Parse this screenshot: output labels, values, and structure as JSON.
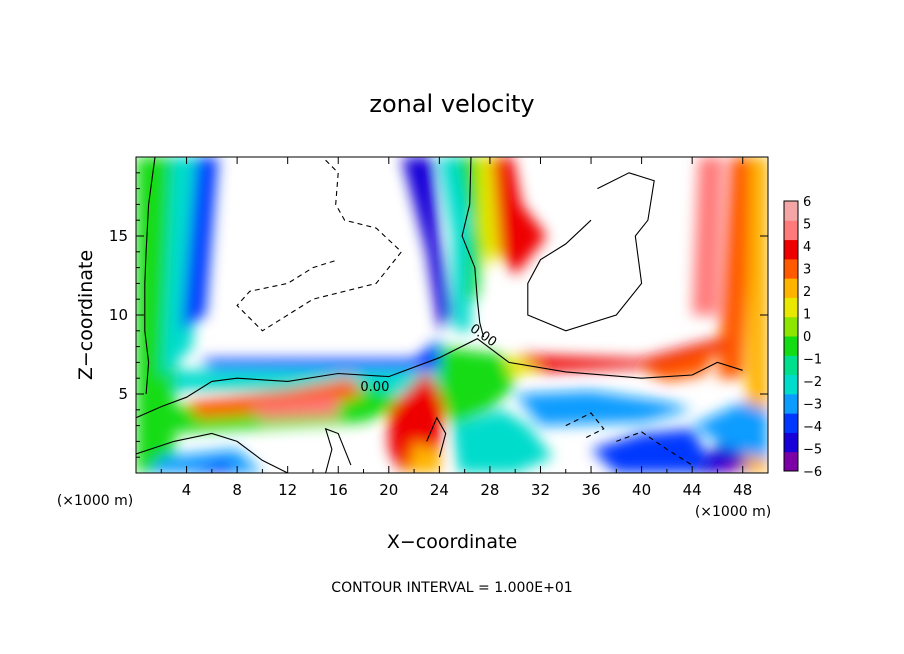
{
  "chart_data": {
    "type": "heatmap",
    "title": "zonal velocity",
    "xlabel": "X−coordinate",
    "ylabel": "Z−coordinate",
    "x_unit": "(×1000 m)",
    "y_unit": "(×1000 m)",
    "xlim": [
      0,
      50
    ],
    "ylim": [
      0,
      20
    ],
    "x_ticks": [
      4,
      8,
      12,
      16,
      20,
      24,
      28,
      32,
      36,
      40,
      44,
      48
    ],
    "x_tick_labels": [
      "4",
      "8",
      "12",
      "16",
      "20",
      "24",
      "28",
      "32",
      "36",
      "40",
      "44",
      "48"
    ],
    "y_ticks": [
      5,
      10,
      15
    ],
    "y_tick_labels": [
      "5",
      "10",
      "15"
    ],
    "colorbar": {
      "min": -6,
      "max": 6,
      "ticks": [
        6,
        5,
        4,
        3,
        2,
        1,
        0,
        -1,
        -2,
        -3,
        -4,
        -5,
        -6
      ],
      "tick_labels": [
        "6",
        "5",
        "4",
        "3",
        "2",
        "1",
        "0",
        "−1",
        "−2",
        "−3",
        "−4",
        "−5",
        "−6"
      ],
      "colors": [
        "#7b00a6",
        "#1800d8",
        "#0038ff",
        "#0a9cff",
        "#00dccc",
        "#00e08c",
        "#14dc14",
        "#8ce600",
        "#e8e800",
        "#ffb400",
        "#ff5a00",
        "#ee0000",
        "#ff7a7a",
        "#f4a6a6"
      ]
    },
    "contour_labels": [
      {
        "text": "0.00",
        "x": 18.9,
        "y": 5.2
      },
      {
        "text": "0.00",
        "x": 27.3,
        "y": 8.5
      }
    ],
    "contour_interval_text": "CONTOUR INTERVAL = 1.000E+01",
    "grid": false,
    "legend": "right colorbar"
  }
}
